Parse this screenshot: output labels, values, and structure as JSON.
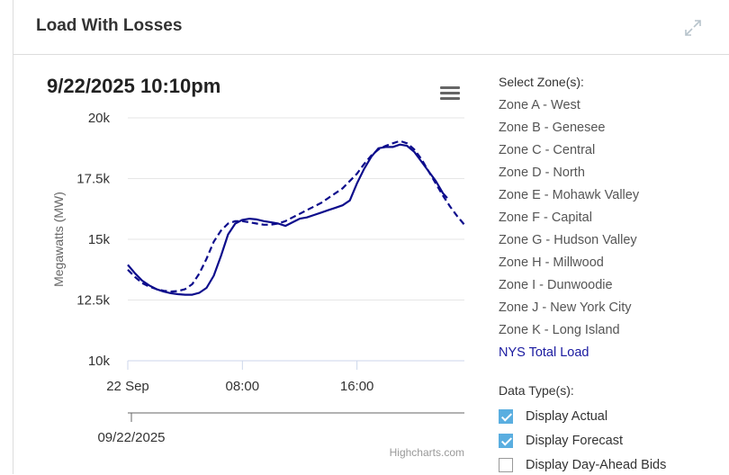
{
  "panel": {
    "title": "Load With Losses"
  },
  "chart_data": {
    "type": "line",
    "title": "9/22/2025 10:10pm",
    "ylabel": "Megawatts (MW)",
    "ylim": [
      10000,
      20000
    ],
    "yticks": [
      10000,
      12500,
      15000,
      17500,
      20000
    ],
    "ytick_labels": [
      "10k",
      "12.5k",
      "15k",
      "17.5k",
      "20k"
    ],
    "xlim": [
      0,
      23.5
    ],
    "xticks": [
      0,
      8,
      16
    ],
    "xtick_labels": [
      "22 Sep",
      "08:00",
      "16:00"
    ],
    "navigator_label": "09/22/2025",
    "credits": "Highcharts.com",
    "series": [
      {
        "style": "solid",
        "color": "#0d0d8c",
        "x": [
          0,
          0.5,
          1,
          1.5,
          2,
          2.5,
          3,
          3.5,
          4,
          4.5,
          5,
          5.5,
          6,
          6.5,
          7,
          7.5,
          8,
          8.5,
          9,
          9.5,
          10,
          10.5,
          11,
          11.5,
          12,
          12.5,
          13,
          13.5,
          14,
          14.5,
          15,
          15.5,
          16,
          16.5,
          17,
          17.5,
          18,
          18.5,
          19,
          19.5,
          20,
          20.5,
          21,
          21.5,
          22,
          22.3
        ],
        "y": [
          13950,
          13600,
          13300,
          13100,
          12950,
          12850,
          12780,
          12740,
          12720,
          12720,
          12800,
          13000,
          13500,
          14300,
          15200,
          15650,
          15800,
          15850,
          15820,
          15750,
          15700,
          15650,
          15550,
          15700,
          15850,
          15900,
          16000,
          16100,
          16200,
          16300,
          16400,
          16600,
          17300,
          17900,
          18400,
          18750,
          18800,
          18800,
          18900,
          18850,
          18600,
          18200,
          17800,
          17400,
          16900,
          16700
        ]
      },
      {
        "style": "dashed",
        "color": "#0d0d8c",
        "x": [
          0,
          0.5,
          1,
          1.5,
          2,
          2.5,
          3,
          3.5,
          4,
          4.5,
          5,
          5.5,
          6,
          6.5,
          7,
          7.5,
          8,
          8.5,
          9,
          9.5,
          10,
          10.5,
          11,
          11.5,
          12,
          12.5,
          13,
          13.5,
          14,
          14.5,
          15,
          15.5,
          16,
          16.5,
          17,
          17.5,
          18,
          18.5,
          19,
          19.5,
          20,
          20.5,
          21,
          21.5,
          22,
          22.5,
          23,
          23.5
        ],
        "y": [
          13750,
          13450,
          13200,
          13050,
          12950,
          12880,
          12850,
          12870,
          12950,
          13150,
          13600,
          14200,
          14900,
          15350,
          15650,
          15750,
          15750,
          15700,
          15650,
          15600,
          15600,
          15650,
          15750,
          15900,
          16050,
          16200,
          16350,
          16500,
          16700,
          16900,
          17100,
          17400,
          17700,
          18100,
          18450,
          18700,
          18850,
          18950,
          19050,
          18950,
          18700,
          18300,
          17800,
          17300,
          16800,
          16350,
          15950,
          15600
        ]
      }
    ]
  },
  "zones": {
    "heading": "Select Zone(s):",
    "items": [
      "Zone A - West",
      "Zone B - Genesee",
      "Zone C - Central",
      "Zone D - North",
      "Zone E - Mohawk Valley",
      "Zone F - Capital",
      "Zone G - Hudson Valley",
      "Zone H - Millwood",
      "Zone I - Dunwoodie",
      "Zone J - New York City",
      "Zone K - Long Island",
      "NYS Total Load"
    ],
    "active": "NYS Total Load"
  },
  "data_types": {
    "heading": "Data Type(s):",
    "items": [
      {
        "label": "Display Actual",
        "checked": true
      },
      {
        "label": "Display Forecast",
        "checked": true
      },
      {
        "label": "Display Day-Ahead Bids",
        "checked": false
      }
    ]
  },
  "colors": {
    "series": "#0d0d8c",
    "checkbox_checked": "#5aaee0",
    "active_zone": "#1a1aa0"
  },
  "icons": {
    "expand": "expand-icon",
    "menu": "hamburger-menu-icon"
  }
}
